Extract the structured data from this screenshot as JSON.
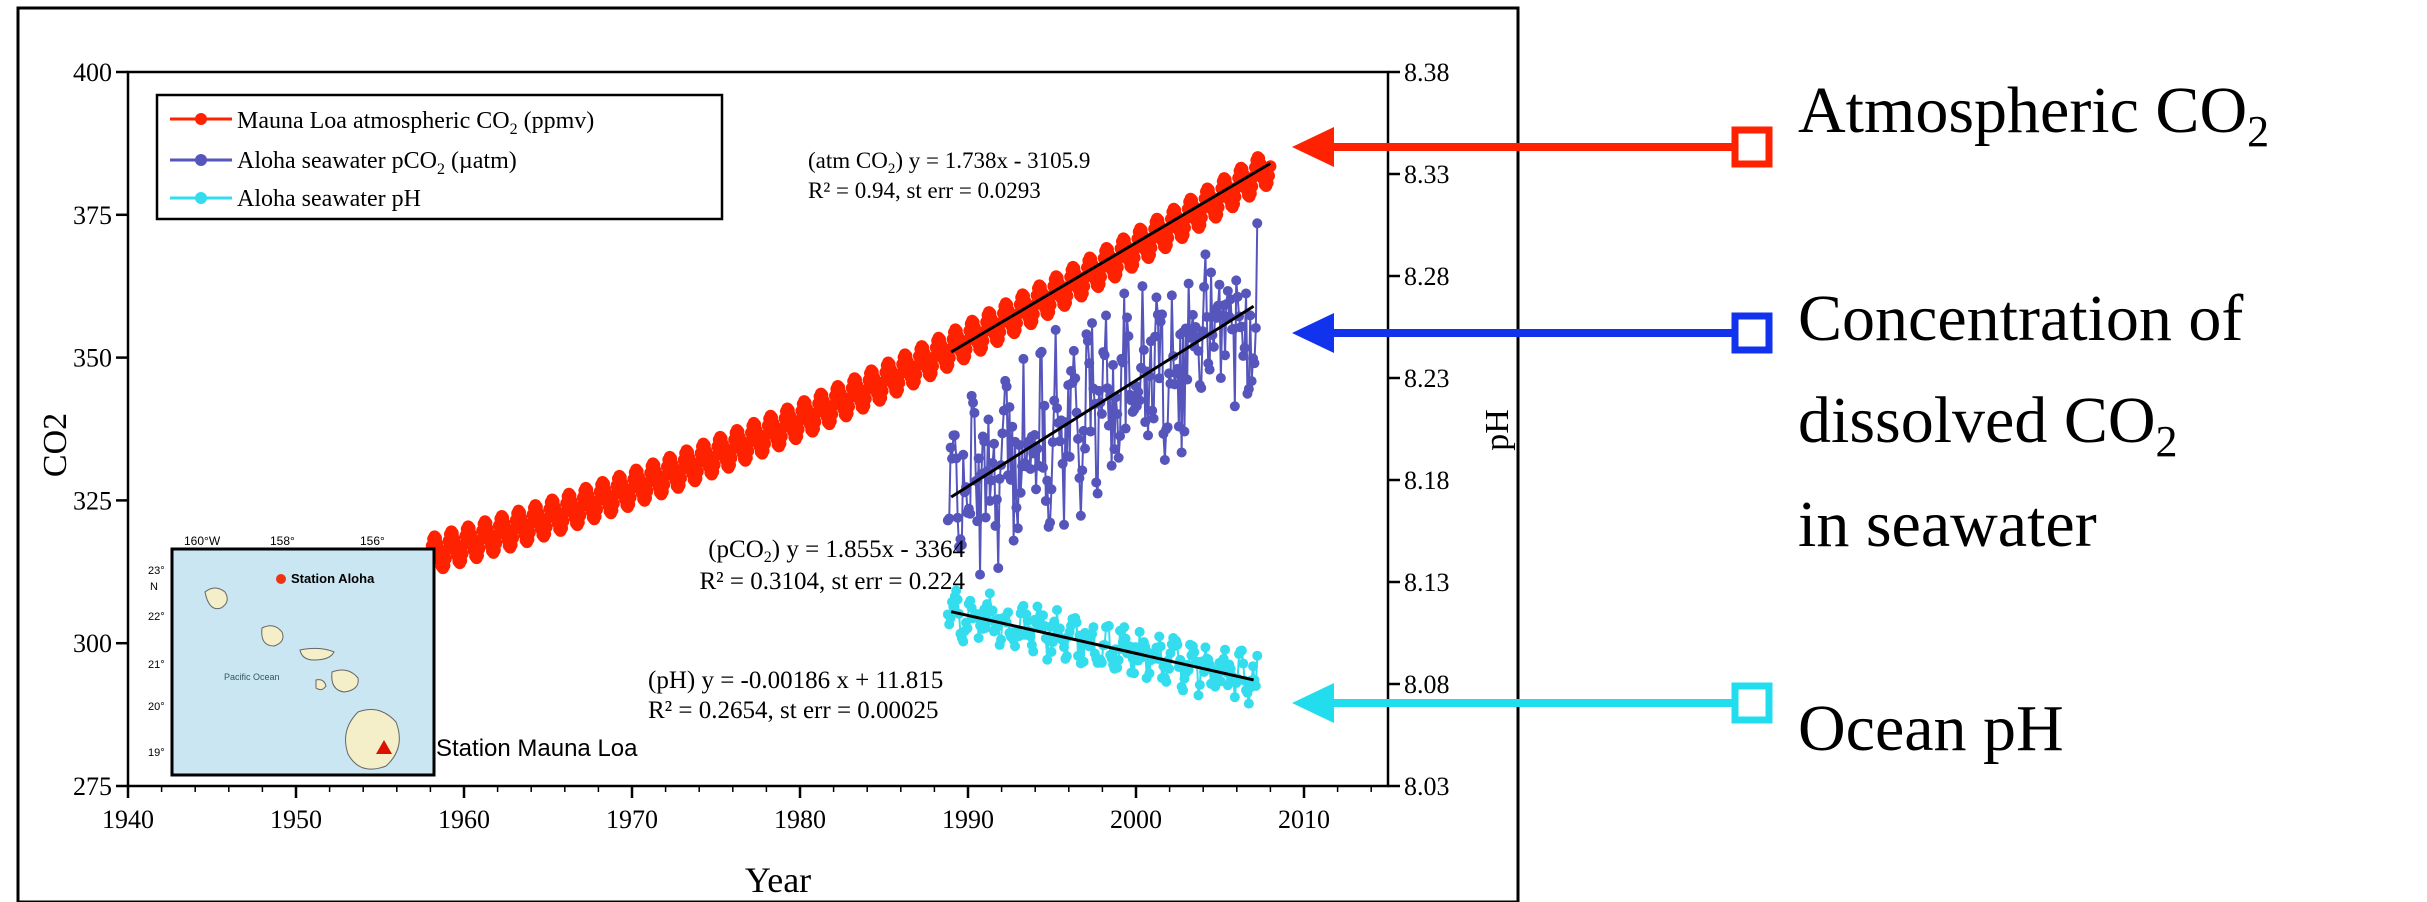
{
  "chart_data": {
    "type": "scatter",
    "xlabel": "Year",
    "ylabel": "CO2",
    "y2label": "pH",
    "xlim": [
      1940,
      2015
    ],
    "ylim": [
      275,
      400
    ],
    "y2lim": [
      8.03,
      8.38
    ],
    "x_ticks": [
      1940,
      1950,
      1960,
      1970,
      1980,
      1990,
      2000,
      2010
    ],
    "y_ticks": [
      275,
      300,
      325,
      350,
      375,
      400
    ],
    "y2_ticks": [
      8.03,
      8.08,
      8.13,
      8.18,
      8.23,
      8.28,
      8.33,
      8.38
    ],
    "legend": {
      "placement": "top-left",
      "entries": [
        {
          "label_main": "Mauna Loa atmospheric CO",
          "label_sub": "2",
          "label_tail": " (ppmv)",
          "color": "#ff2200"
        },
        {
          "label_main": "Aloha seawater pCO",
          "label_sub": "2",
          "label_tail": " (µatm)",
          "color": "#5555bb"
        },
        {
          "label_main": "Aloha seawater pH",
          "label_sub": "",
          "label_tail": "",
          "color": "#33ddee"
        }
      ]
    },
    "series": [
      {
        "name": "Mauna Loa atmospheric CO2 (ppmv)",
        "axis": "left",
        "color": "#ff2200",
        "x_start": 1958,
        "x_end": 2008,
        "base_start": 315.5,
        "base_end": 383.5,
        "seasonal_amplitude": 3,
        "points_per_year": 12
      },
      {
        "name": "Aloha seawater pCO2 (µatm)",
        "axis": "left",
        "color": "#5555bb",
        "x_start": 1988.8,
        "x_end": 2007.2,
        "trend_slope": 1.855,
        "trend_intercept": -3364,
        "scatter": 12,
        "points_per_year": 12
      },
      {
        "name": "Aloha seawater pH",
        "axis": "right",
        "color": "#33ddee",
        "x_start": 1988.8,
        "x_end": 2007.2,
        "trend_slope": -0.00186,
        "trend_intercept": 11.815,
        "scatter": 0.008,
        "points_per_year": 12
      }
    ],
    "trend_lines": [
      {
        "axis": "left",
        "x": [
          1989,
          2008
        ],
        "slope": 1.738,
        "intercept": -3105.9
      },
      {
        "axis": "left",
        "x": [
          1989,
          2007
        ],
        "slope": 1.855,
        "intercept": -3364
      },
      {
        "axis": "right",
        "x": [
          1989,
          2007
        ],
        "slope": -0.00186,
        "intercept": 11.815
      }
    ],
    "annotations": {
      "atm": {
        "line1": "(atm CO",
        "sub": "2",
        "line1_tail": ") y = 1.738x - 3105.9",
        "line2": "R² = 0.94, st err = 0.0293"
      },
      "pco2": {
        "line1": "(pCO",
        "sub": "2",
        "line1_tail": ") y = 1.855x - 3364",
        "line2": "R² = 0.3104, st err = 0.224"
      },
      "ph": {
        "line1": "(pH) y = -0.00186 x + 11.815",
        "line2": "R² = 0.2654, st err = 0.00025"
      }
    }
  },
  "inset_map": {
    "lon_labels": [
      "160°W",
      "158°",
      "156°"
    ],
    "lat_labels": [
      "23°",
      "N",
      "22°",
      "21°",
      "20°",
      "19°"
    ],
    "legend_text": "Station Aloha",
    "ocean_label": "Pacific Ocean",
    "station_label": "Station Mauna Loa",
    "ocean_color": "#c9e6f2"
  },
  "callouts": [
    {
      "id": "atm",
      "text_main": "Atmospheric CO",
      "text_sub": "2",
      "color": "#ff2200"
    },
    {
      "id": "dissolved",
      "line1": "Concentration of",
      "line2_main": "dissolved CO",
      "line2_sub": "2",
      "line3": "in seawater",
      "color": "#1133ee"
    },
    {
      "id": "ph",
      "text_main": "Ocean pH",
      "color": "#22ddee"
    }
  ]
}
